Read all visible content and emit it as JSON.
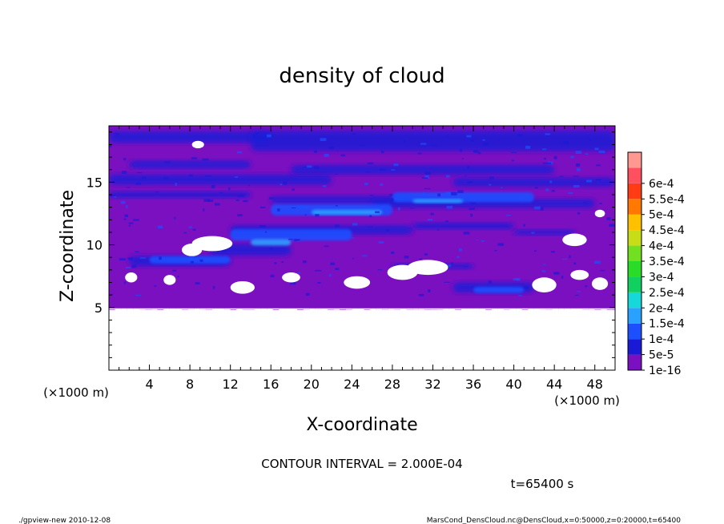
{
  "chart_data": {
    "type": "heatmap",
    "title": "density of cloud",
    "xlabel": "X-coordinate",
    "ylabel": "Z-coordinate",
    "x_unit": "(×1000 m)",
    "y_unit": "(×1000 m)",
    "xlim": [
      0,
      50
    ],
    "ylim": [
      0,
      19.5
    ],
    "x_ticks": [
      4,
      8,
      12,
      16,
      20,
      24,
      28,
      32,
      36,
      40,
      44,
      48
    ],
    "y_ticks": [
      5,
      10,
      15
    ],
    "colorbar": {
      "labels": [
        "1e-16",
        "5e-5",
        "1e-4",
        "1.5e-4",
        "2e-4",
        "2.5e-4",
        "3e-4",
        "3.5e-4",
        "4e-4",
        "4.5e-4",
        "5e-4",
        "5.5e-4",
        "6e-4"
      ],
      "colors": [
        "#7a10c0",
        "#1a1ad6",
        "#1c50ff",
        "#2aa0ff",
        "#16d8d8",
        "#10d060",
        "#28dc28",
        "#70e020",
        "#c8dc18",
        "#ffc000",
        "#ff7800",
        "#ff3c14",
        "#ff5060",
        "#ff9890"
      ]
    },
    "cloud_base_z": 5,
    "legend": "right",
    "grid": false
  },
  "annotations": {
    "contour_interval": "CONTOUR INTERVAL = 2.000E-04",
    "time": "t=65400 s",
    "footer_left": "./gpview-new  2010-12-08",
    "footer_right": "MarsCond_DensCloud.nc@DensCloud,x=0:50000,z=0:20000,t=65400"
  }
}
